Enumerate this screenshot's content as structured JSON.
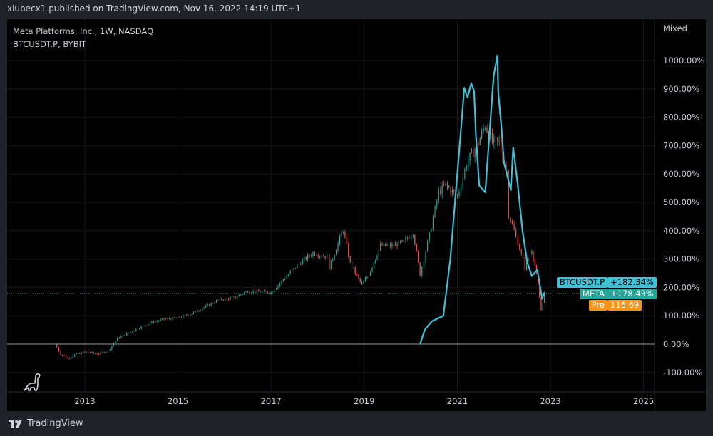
{
  "header": {
    "published": "xlubecx1 published on TradingView.com, Nov 16, 2022 14:19 UTC+1"
  },
  "legend": {
    "line1": "Meta Platforms, Inc., 1W, NASDAQ",
    "line2": "BTCUSDT.P, BYBIT"
  },
  "footer": {
    "brand": "TradingView",
    "logo_icon": "tradingview-logo-icon",
    "dino_icon": "dinosaur-icon"
  },
  "price_axis": {
    "mode_label": "Mixed"
  },
  "tags": {
    "btc": {
      "name": "BTCUSDT.P",
      "value": "+182.34%",
      "color": "#3fc1d6"
    },
    "meta": {
      "name": "META",
      "value": "+178.43%",
      "color": "#26a69a"
    },
    "pre": {
      "name": "Pre",
      "value": "116.69",
      "color": "#f7931a"
    }
  },
  "chart_data": {
    "type": "line",
    "title": "",
    "x_ticks": [
      "2013",
      "2015",
      "2017",
      "2019",
      "2021",
      "2023",
      "2025"
    ],
    "y_ticks": [
      "-100.00%",
      "0.00%",
      "100.00%",
      "200.00%",
      "300.00%",
      "400.00%",
      "500.00%",
      "600.00%",
      "700.00%",
      "800.00%",
      "900.00%",
      "1000.00%"
    ],
    "y_tick_values": [
      -100,
      0,
      100,
      200,
      300,
      400,
      500,
      600,
      700,
      800,
      900,
      1000
    ],
    "x_tick_values": [
      2013,
      2015,
      2017,
      2019,
      2021,
      2023,
      2025
    ],
    "ylim": [
      -170,
      1100
    ],
    "xlim": [
      2011.7,
      2025.3
    ],
    "grid": true,
    "colors": {
      "up": "#26a69a",
      "down": "#ef5350",
      "btc": "#3fc1d6",
      "zero_line": "#9598a1"
    },
    "series": [
      {
        "name": "META",
        "style": "candles",
        "points": [
          [
            2012.36,
            0
          ],
          [
            2012.48,
            -35
          ],
          [
            2012.63,
            -50
          ],
          [
            2012.78,
            -38
          ],
          [
            2013.0,
            -28
          ],
          [
            2013.3,
            -35
          ],
          [
            2013.5,
            -23
          ],
          [
            2013.7,
            20
          ],
          [
            2014.1,
            53
          ],
          [
            2014.4,
            75
          ],
          [
            2014.7,
            88
          ],
          [
            2015.0,
            93
          ],
          [
            2015.3,
            108
          ],
          [
            2015.6,
            133
          ],
          [
            2015.9,
            158
          ],
          [
            2016.2,
            163
          ],
          [
            2016.5,
            188
          ],
          [
            2016.85,
            183
          ],
          [
            2017.0,
            183
          ],
          [
            2017.3,
            234
          ],
          [
            2017.6,
            284
          ],
          [
            2017.9,
            322
          ],
          [
            2018.2,
            309
          ],
          [
            2018.25,
            271
          ],
          [
            2018.55,
            405
          ],
          [
            2018.7,
            284
          ],
          [
            2018.95,
            209
          ],
          [
            2019.1,
            246
          ],
          [
            2019.35,
            347
          ],
          [
            2019.6,
            347
          ],
          [
            2019.85,
            359
          ],
          [
            2020.05,
            397
          ],
          [
            2020.2,
            246
          ],
          [
            2020.4,
            385
          ],
          [
            2020.6,
            535
          ],
          [
            2020.75,
            560
          ],
          [
            2021.0,
            522
          ],
          [
            2021.2,
            636
          ],
          [
            2021.45,
            711
          ],
          [
            2021.6,
            774
          ],
          [
            2021.75,
            711
          ],
          [
            2021.9,
            711
          ],
          [
            2022.05,
            610
          ],
          [
            2022.1,
            460
          ],
          [
            2022.3,
            359
          ],
          [
            2022.45,
            271
          ],
          [
            2022.6,
            334
          ],
          [
            2022.7,
            246
          ],
          [
            2022.8,
            121
          ],
          [
            2022.87,
            178
          ]
        ]
      },
      {
        "name": "BTCUSDT.P",
        "style": "line",
        "points": [
          [
            2020.2,
            0
          ],
          [
            2020.3,
            50
          ],
          [
            2020.45,
            80
          ],
          [
            2020.7,
            100
          ],
          [
            2020.85,
            300
          ],
          [
            2020.95,
            500
          ],
          [
            2021.05,
            700
          ],
          [
            2021.15,
            904
          ],
          [
            2021.22,
            870
          ],
          [
            2021.3,
            920
          ],
          [
            2021.36,
            892
          ],
          [
            2021.4,
            736
          ],
          [
            2021.47,
            560
          ],
          [
            2021.6,
            535
          ],
          [
            2021.78,
            945
          ],
          [
            2021.86,
            1018
          ],
          [
            2021.88,
            887
          ],
          [
            2021.95,
            761
          ],
          [
            2022.0,
            643
          ],
          [
            2022.15,
            543
          ],
          [
            2022.2,
            693
          ],
          [
            2022.3,
            560
          ],
          [
            2022.4,
            400
          ],
          [
            2022.5,
            290
          ],
          [
            2022.6,
            240
          ],
          [
            2022.72,
            262
          ],
          [
            2022.82,
            160
          ],
          [
            2022.87,
            182
          ]
        ]
      }
    ],
    "last_value_line": 178.43
  }
}
